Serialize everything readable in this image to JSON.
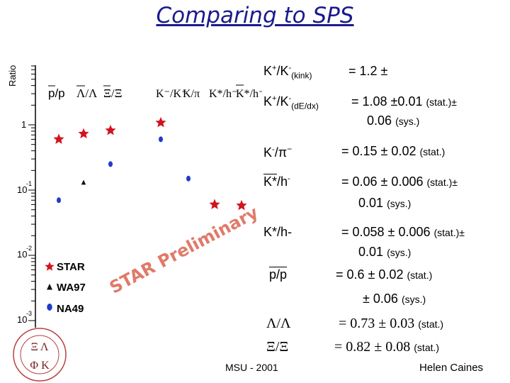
{
  "slide": {
    "title": "Comparing to SPS",
    "footer_center": "MSU - 2001",
    "footer_right": "Helen Caines",
    "preliminary": "STAR Preliminary"
  },
  "plot": {
    "ylabel": "Ratio",
    "yticks": [
      "1",
      "10",
      "10",
      "10"
    ],
    "ytick_exps": [
      "",
      "-1",
      "-2",
      "-3"
    ],
    "legend": [
      {
        "label": "STAR",
        "marker": "star",
        "color": "#d0141e"
      },
      {
        "label": "WA97",
        "marker": "triangle",
        "color": "#111111"
      },
      {
        "label": "NA49",
        "marker": "circle",
        "color": "#1f3cc8"
      }
    ]
  },
  "chart_data": {
    "type": "scatter",
    "ylabel": "Ratio",
    "log_y": true,
    "ylim": [
      0.001,
      10
    ],
    "categories": [
      "p̄/p",
      "Λ̄/Λ",
      "Ξ̄/Ξ",
      "K⁻/K⁺",
      "K/π",
      "K*/h⁻",
      "K̄*/h⁻"
    ],
    "series": [
      {
        "name": "STAR",
        "values": [
          0.6,
          0.73,
          0.82,
          1.08,
          null,
          0.06,
          0.058
        ]
      },
      {
        "name": "WA97",
        "values": [
          null,
          0.13,
          null,
          null,
          null,
          null,
          null
        ]
      },
      {
        "name": "NA49",
        "values": [
          0.07,
          null,
          0.25,
          0.6,
          0.15,
          null,
          null
        ]
      }
    ]
  },
  "results": {
    "r1": {
      "lhs": "K+/K-(kink)",
      "rhs": "= 1.2 ±"
    },
    "r2": {
      "lhs": "K+/K-(dE/dx)",
      "rhs": "= 1.08 ±0.01",
      "stat": "(stat.)±",
      "line2": "0.06",
      "sys": "(sys.)"
    },
    "r3": {
      "lhs": "K-/π−",
      "rhs": "= 0.15 ± 0.02",
      "stat": "(stat.)"
    },
    "r4": {
      "lhs": "K*/h-",
      "rhs": "= 0.06 ± 0.006",
      "stat": "(stat.)±",
      "line2": "0.01",
      "sys": "(sys.)"
    },
    "r5": {
      "lhs": "K*/h-",
      "rhs": "= 0.058 ± 0.006",
      "stat": "(stat.)±",
      "line2": "0.01",
      "sys": "(sys.)"
    },
    "r6": {
      "lhs": "p/p",
      "rhs": "= 0.6 ± 0.02",
      "stat": "(stat.)",
      "line2": "± 0.06",
      "sys": "(sys.)"
    },
    "r7": {
      "lhs": "Λ/Λ",
      "rhs": "= 0.73 ± 0.03",
      "stat": "(stat.)"
    },
    "r8": {
      "lhs": "Ξ/Ξ",
      "rhs": "= 0.82 ± 0.08",
      "stat": "(stat.)"
    }
  },
  "colors": {
    "title": "#1a1a8c",
    "star": "#d0141e",
    "na49": "#1f3cc8",
    "prelim": "#e07a6a"
  }
}
